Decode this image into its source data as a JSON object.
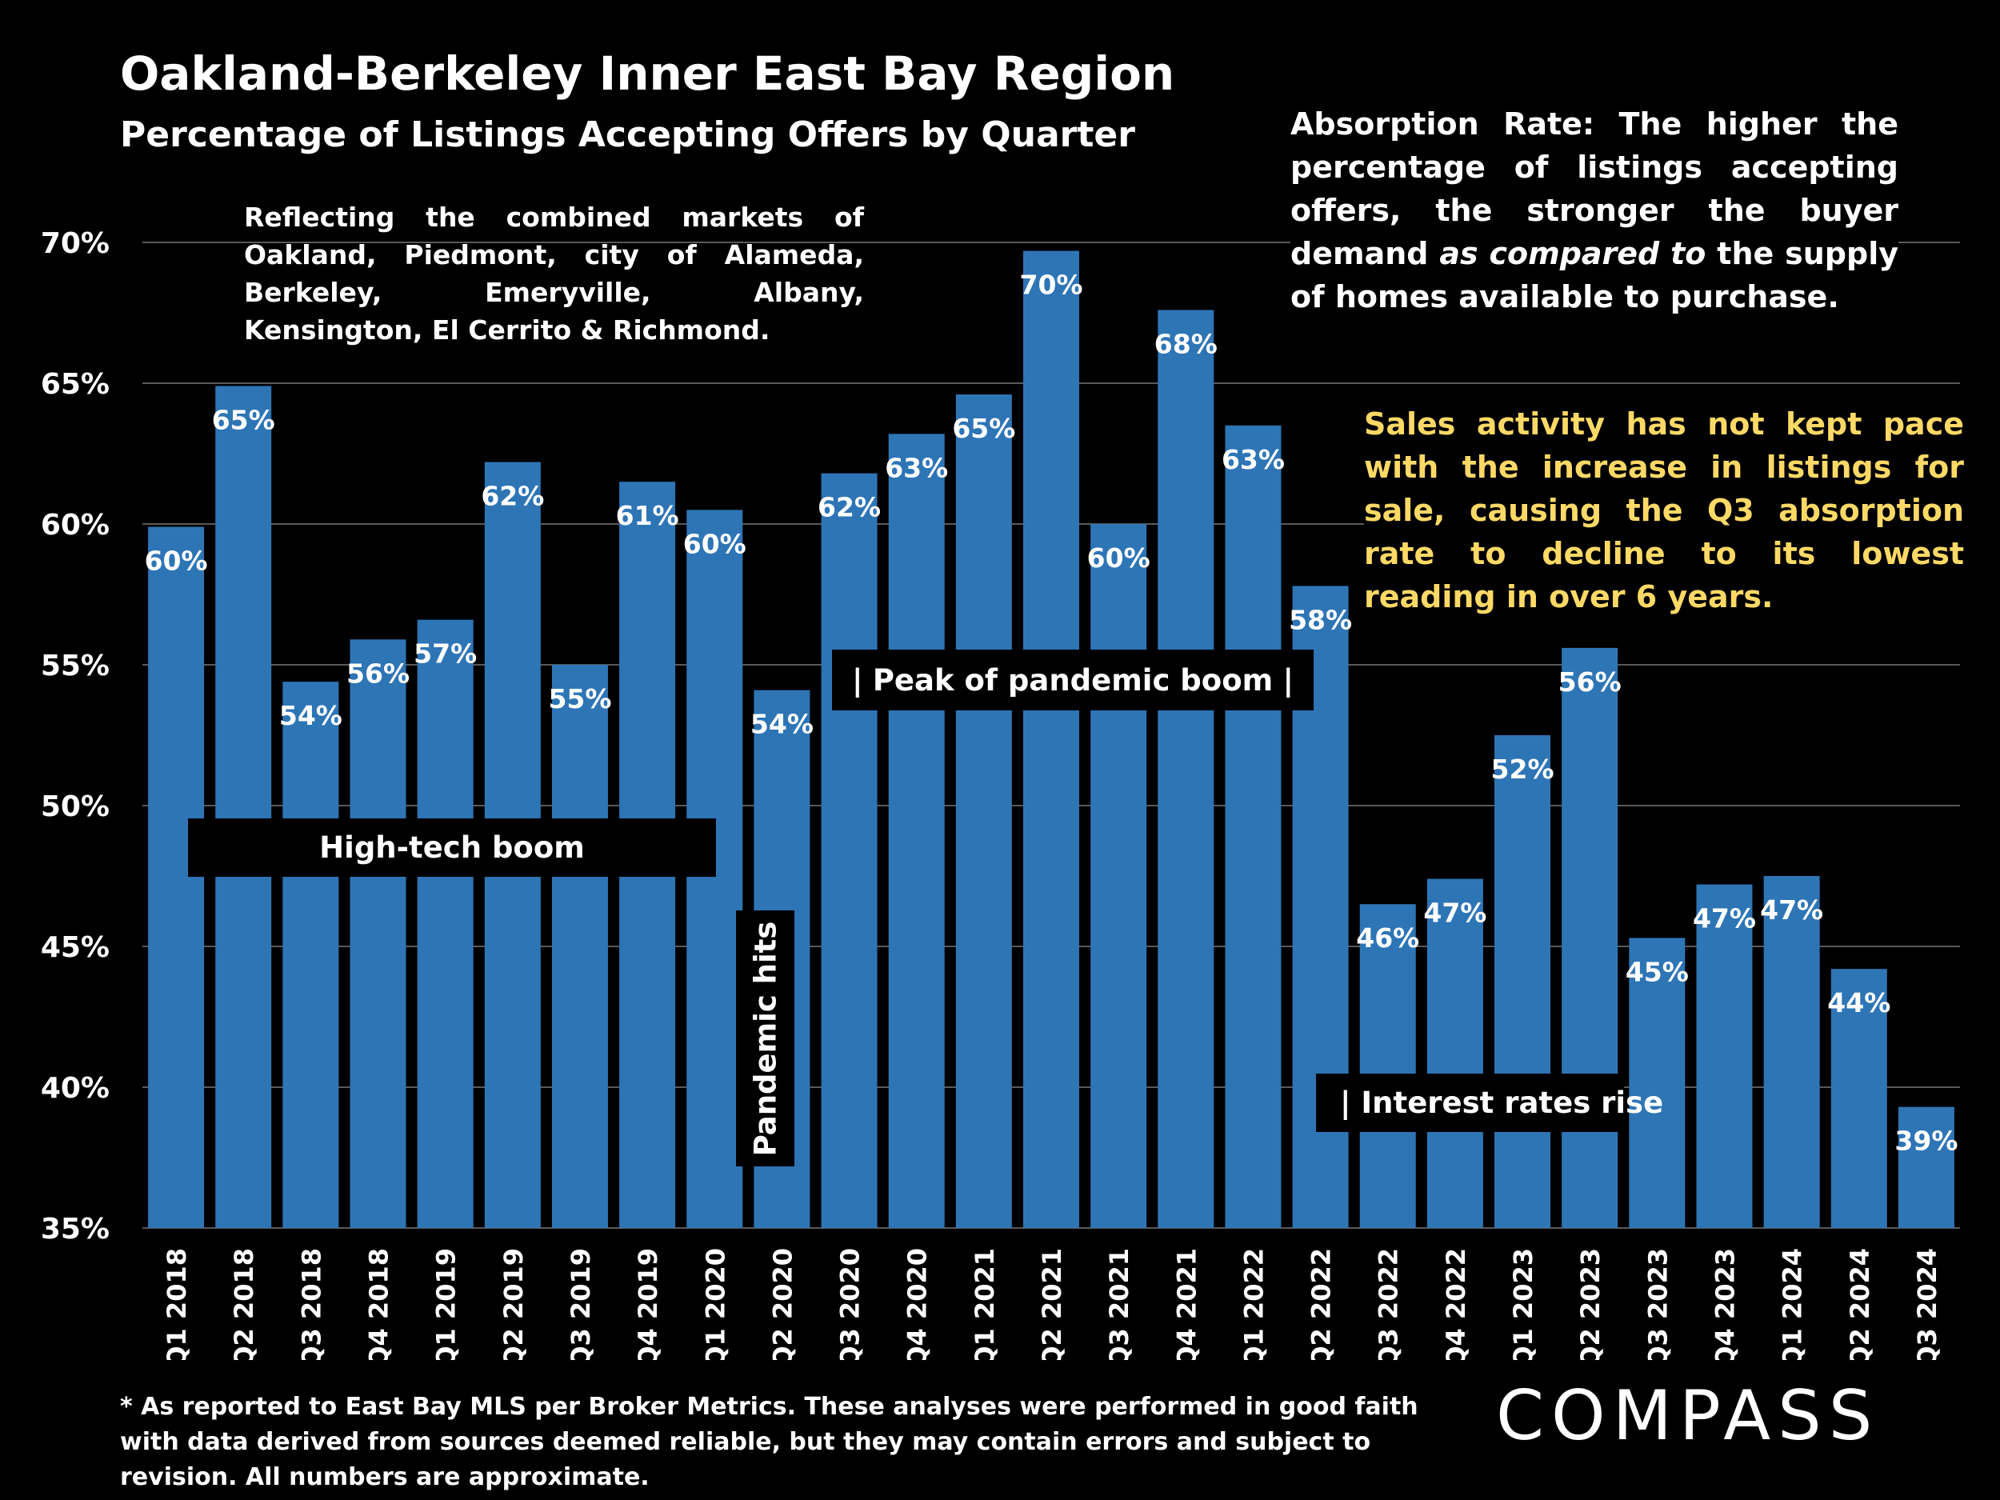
{
  "header": {
    "title": "Oakland-Berkeley Inner East Bay Region",
    "subtitle": "Percentage of Listings Accepting Offers by Quarter"
  },
  "notes": {
    "region": "Reflecting the combined markets of Oakland, Piedmont, city of Alameda, Berkeley, Emeryville, Albany, Kensington, El Cerrito & Richmond.",
    "absorption_part1": "Absorption Rate: The higher the percentage of listings accepting offers, the stronger the buyer demand ",
    "absorption_italic": "as compared to",
    "absorption_part2": " the supply of homes available to purchase.",
    "sales": "Sales activity has not kept pace with the increase in listings for sale, causing the Q3 absorption rate to decline to its lowest reading in over 6 years."
  },
  "annotations": {
    "high_tech": "High-tech boom",
    "peak_left": "|",
    "peak_text": "Peak of pandemic boom",
    "peak_right": "|",
    "rates": "| Interest rates rise",
    "pandemic": "Pandemic hits"
  },
  "footnote": "* As reported to East Bay MLS per Broker Metrics. These analyses were performed in good faith with data derived from sources deemed reliable, but they may contain errors and subject to revision. All numbers are approximate.",
  "logo": "COMPASS",
  "colors": {
    "bar": "#2e75b6",
    "grid": "#595959",
    "background": "#000000",
    "highlight_text": "#ffd966"
  },
  "chart_data": {
    "type": "bar",
    "title": "Percentage of Listings Accepting Offers by Quarter",
    "categories": [
      "Q1 2018",
      "Q2 2018",
      "Q3 2018",
      "Q4 2018",
      "Q1 2019",
      "Q2 2019",
      "Q3 2019",
      "Q4 2019",
      "Q1 2020",
      "Q2 2020",
      "Q3 2020",
      "Q4 2020",
      "Q1 2021",
      "Q2 2021",
      "Q3 2021",
      "Q4 2021",
      "Q1 2022",
      "Q2 2022",
      "Q3 2022",
      "Q4 2022",
      "Q1 2023",
      "Q2 2023",
      "Q3 2023",
      "Q4 2023",
      "Q1 2024",
      "Q2 2024",
      "Q3 2024"
    ],
    "values": [
      59.9,
      64.9,
      54.4,
      55.9,
      56.6,
      62.2,
      55.0,
      61.5,
      60.5,
      54.1,
      61.8,
      63.2,
      64.6,
      69.7,
      60.0,
      67.6,
      63.5,
      57.8,
      46.5,
      47.4,
      52.5,
      55.6,
      45.3,
      47.2,
      47.5,
      44.2,
      39.3
    ],
    "labels": [
      "60%",
      "65%",
      "54%",
      "56%",
      "57%",
      "62%",
      "55%",
      "61%",
      "60%",
      "54%",
      "62%",
      "63%",
      "65%",
      "70%",
      "60%",
      "68%",
      "63%",
      "58%",
      "46%",
      "47%",
      "52%",
      "56%",
      "45%",
      "47%",
      "47%",
      "44%",
      "39%"
    ],
    "yticks": [
      "35%",
      "40%",
      "45%",
      "50%",
      "55%",
      "60%",
      "65%",
      "70%"
    ],
    "ylim": [
      35,
      70
    ],
    "xlabel": "",
    "ylabel": "",
    "grid": true
  }
}
